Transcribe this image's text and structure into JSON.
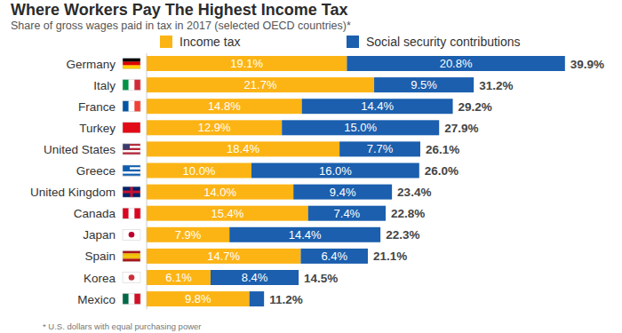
{
  "chart_data": {
    "type": "bar",
    "orientation": "horizontal",
    "stacked": true,
    "data_labels": true,
    "tick_labels": "y",
    "grid": false,
    "legend": "top",
    "title": "Where Workers Pay The Highest Income Tax",
    "subtitle": "Share of gross wages paid in tax in 2017 (selected OECD countries)*",
    "footnote": "* U.S. dollars with equal purchasing power",
    "categories": [
      "Germany",
      "Italy",
      "France",
      "Turkey",
      "United States",
      "Greece",
      "United Kingdom",
      "Canada",
      "Japan",
      "Spain",
      "Korea",
      "Mexico"
    ],
    "xlim": [
      0,
      45
    ],
    "series": [
      {
        "name": "Income tax",
        "color": "#fcb415",
        "values": [
          19.1,
          21.7,
          14.8,
          12.9,
          18.4,
          10.0,
          14.0,
          15.4,
          7.9,
          14.7,
          6.1,
          9.8
        ],
        "value_labels": [
          "19.1%",
          "21.7%",
          "14.8%",
          "12.9%",
          "18.4%",
          "10.0%",
          "14.0%",
          "15.4%",
          "7.9%",
          "14.7%",
          "6.1%",
          "9.8%"
        ]
      },
      {
        "name": "Social security contributions",
        "color": "#1b5fae",
        "values": [
          20.8,
          9.5,
          14.4,
          15.0,
          7.7,
          16.0,
          9.4,
          7.4,
          14.4,
          6.4,
          8.4,
          1.4
        ],
        "value_labels": [
          "20.8%",
          "9.5%",
          "14.4%",
          "15.0%",
          "7.7%",
          "16.0%",
          "9.4%",
          "7.4%",
          "14.4%",
          "6.4%",
          "8.4%",
          null
        ]
      }
    ],
    "totals": [
      39.9,
      31.2,
      29.2,
      27.9,
      26.1,
      26.0,
      23.4,
      22.8,
      22.3,
      21.1,
      14.5,
      11.2
    ],
    "total_labels": [
      "39.9%",
      "31.2%",
      "29.2%",
      "27.9%",
      "26.1%",
      "26.0%",
      "23.4%",
      "22.8%",
      "22.3%",
      "21.1%",
      "14.5%",
      "11.2%"
    ]
  }
}
